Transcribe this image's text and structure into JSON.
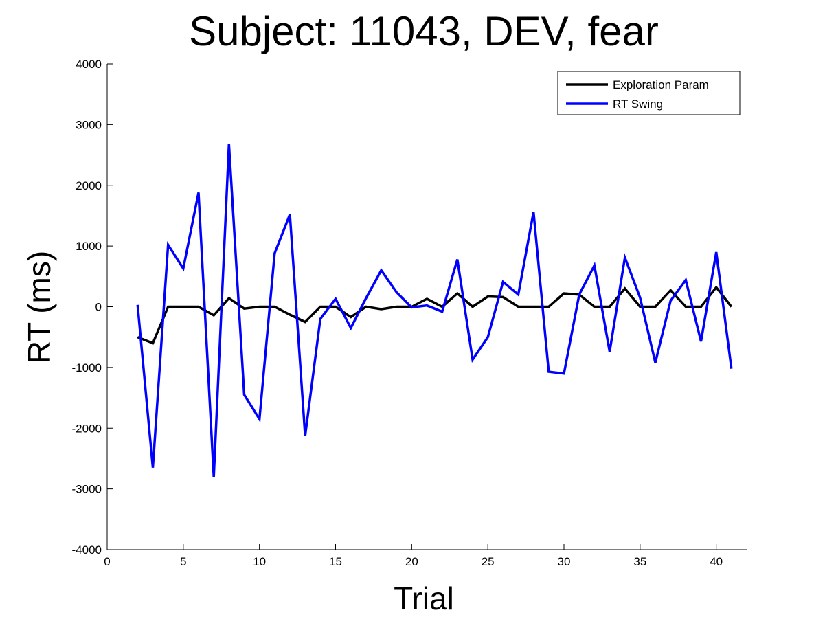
{
  "chart_data": {
    "type": "line",
    "title": "Subject: 11043, DEV, fear",
    "xlabel": "Trial",
    "ylabel": "RT (ms)",
    "xlim": [
      0,
      42
    ],
    "ylim": [
      -4000,
      4000
    ],
    "xticks": [
      0,
      5,
      10,
      15,
      20,
      25,
      30,
      35,
      40
    ],
    "yticks": [
      -4000,
      -3000,
      -2000,
      -1000,
      0,
      1000,
      2000,
      3000,
      4000
    ],
    "grid": false,
    "legend_position": "top-right",
    "x": [
      2,
      3,
      4,
      5,
      6,
      7,
      8,
      9,
      10,
      11,
      12,
      13,
      14,
      15,
      16,
      17,
      18,
      19,
      20,
      21,
      22,
      23,
      24,
      25,
      26,
      27,
      28,
      29,
      30,
      31,
      32,
      33,
      34,
      35,
      36,
      37,
      38,
      39,
      40,
      41
    ],
    "series": [
      {
        "name": "Exploration Param",
        "color": "#000000",
        "values": [
          -500,
          -600,
          0,
          0,
          0,
          -140,
          140,
          -30,
          0,
          0,
          -130,
          -250,
          0,
          0,
          -170,
          0,
          -40,
          0,
          0,
          130,
          0,
          220,
          0,
          170,
          160,
          0,
          0,
          0,
          220,
          200,
          0,
          0,
          300,
          0,
          0,
          270,
          0,
          0,
          320,
          0
        ]
      },
      {
        "name": "RT Swing",
        "color": "#0000ff",
        "values": [
          30,
          -2650,
          1020,
          630,
          1880,
          -2800,
          2680,
          -1450,
          -1850,
          880,
          1520,
          -2130,
          -200,
          130,
          -350,
          140,
          600,
          240,
          -10,
          20,
          -80,
          780,
          -870,
          -500,
          410,
          200,
          1560,
          -1070,
          -1100,
          200,
          680,
          -740,
          810,
          150,
          -920,
          100,
          440,
          -570,
          900,
          -1020
        ]
      }
    ]
  }
}
